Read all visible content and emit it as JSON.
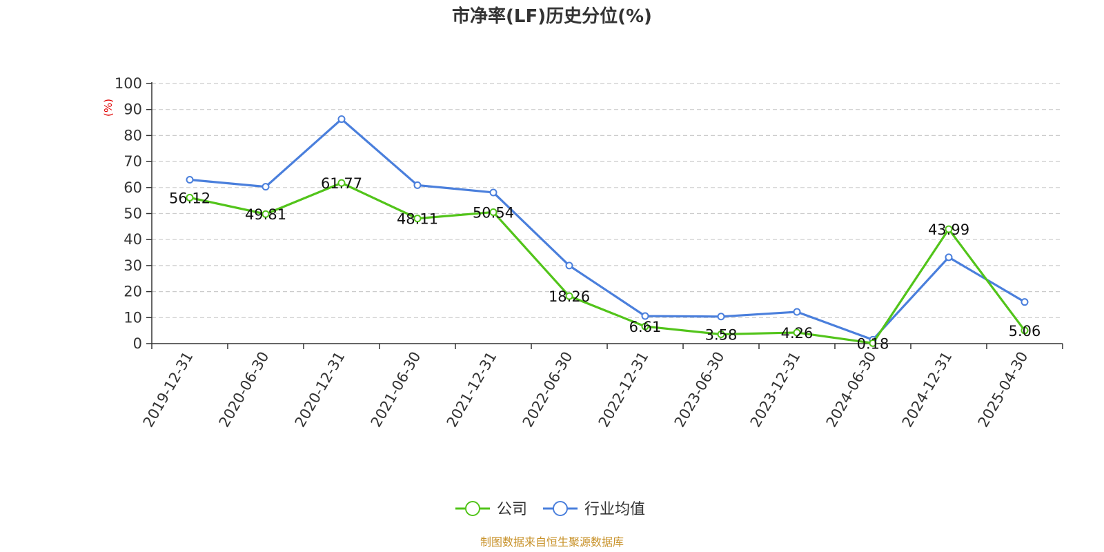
{
  "chart_data": {
    "type": "line",
    "title": "市净率(LF)历史分位(%)",
    "ylabel": "(%)",
    "ylim": [
      0,
      100
    ],
    "yticks": [
      0,
      10,
      20,
      30,
      40,
      50,
      60,
      70,
      80,
      90,
      100
    ],
    "categories": [
      "2019-12-31",
      "2020-06-30",
      "2020-12-31",
      "2021-06-30",
      "2021-12-31",
      "2022-06-30",
      "2022-12-31",
      "2023-06-30",
      "2023-12-31",
      "2024-06-30",
      "2024-12-31",
      "2025-04-30"
    ],
    "grid": true,
    "legend_position": "bottom",
    "series": [
      {
        "name": "公司",
        "color": "#52c41a",
        "values": [
          56.12,
          49.81,
          61.77,
          48.11,
          50.54,
          18.26,
          6.61,
          3.58,
          4.26,
          0.18,
          43.99,
          5.06
        ],
        "labels": [
          "56.12",
          "49.81",
          "61.77",
          "48.11",
          "50.54",
          "18.26",
          "6.61",
          "3.58",
          "4.26",
          "0.18",
          "43.99",
          "5.06"
        ]
      },
      {
        "name": "行业均值",
        "color": "#4a7fdc",
        "values": [
          63.0,
          60.3,
          86.3,
          60.9,
          58.1,
          30.0,
          10.6,
          10.4,
          12.2,
          1.5,
          33.2,
          16.0
        ]
      }
    ],
    "source": "制图数据来自恒生聚源数据库"
  },
  "colors": {
    "axis": "#333333",
    "grid": "#cccccc",
    "unit_label": "#e00000",
    "source": "#c8922a"
  }
}
